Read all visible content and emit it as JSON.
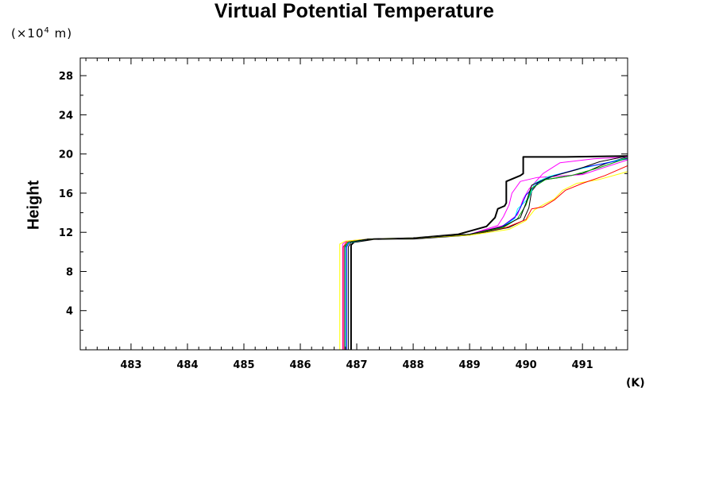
{
  "chart_data": {
    "type": "line",
    "title": "Virtual Potential Temperature",
    "ylabel": "Height",
    "y_unit": "(×10⁴ m)",
    "y_unit_base": "(×10",
    "y_unit_exp": "4",
    "y_unit_tail": " m)",
    "x_unit": "(K)",
    "xlim": [
      482.1,
      491.8
    ],
    "ylim": [
      0,
      29.8
    ],
    "x_ticks": [
      "483",
      "484",
      "485",
      "486",
      "487",
      "488",
      "489",
      "490",
      "491"
    ],
    "y_ticks": [
      "4",
      "8",
      "12",
      "16",
      "20",
      "24",
      "28"
    ],
    "grid": false,
    "series": [
      {
        "color": "#000000",
        "points": [
          [
            486.9,
            0
          ],
          [
            486.9,
            10.7
          ],
          [
            486.95,
            11.0
          ],
          [
            487.3,
            11.3
          ],
          [
            488,
            11.4
          ],
          [
            488.8,
            11.8
          ],
          [
            489.3,
            12.6
          ],
          [
            489.45,
            13.5
          ],
          [
            489.5,
            14.4
          ],
          [
            489.62,
            14.7
          ],
          [
            489.65,
            15.0
          ],
          [
            489.65,
            17.2
          ],
          [
            489.9,
            17.8
          ],
          [
            489.95,
            18.0
          ],
          [
            489.95,
            19.7
          ],
          [
            490.7,
            19.7
          ],
          [
            491.8,
            19.8
          ]
        ],
        "width": 2
      },
      {
        "color": "#000000",
        "points": [
          [
            486.8,
            0
          ],
          [
            486.8,
            10.5
          ],
          [
            486.85,
            11.0
          ],
          [
            487.2,
            11.3
          ],
          [
            488,
            11.3
          ],
          [
            489,
            11.7
          ],
          [
            489.7,
            12.5
          ],
          [
            489.95,
            13.2
          ],
          [
            490.05,
            14.5
          ],
          [
            490.1,
            16.2
          ],
          [
            490.25,
            17.3
          ],
          [
            490.6,
            17.6
          ],
          [
            491,
            18.0
          ],
          [
            491.4,
            19.0
          ],
          [
            491.8,
            19.7
          ]
        ],
        "width": 1
      },
      {
        "color": "#ff00ff",
        "points": [
          [
            486.75,
            0
          ],
          [
            486.75,
            10.8
          ],
          [
            486.82,
            11.1
          ],
          [
            487.2,
            11.3
          ],
          [
            488,
            11.4
          ],
          [
            489,
            11.8
          ],
          [
            489.5,
            12.7
          ],
          [
            489.6,
            13.6
          ],
          [
            489.7,
            14.8
          ],
          [
            489.75,
            16.0
          ],
          [
            489.9,
            17.2
          ],
          [
            490.2,
            17.6
          ],
          [
            491,
            17.9
          ],
          [
            491.8,
            19.4
          ]
        ],
        "width": 1
      },
      {
        "color": "#ff00ff",
        "points": [
          [
            486.78,
            0
          ],
          [
            486.78,
            10.6
          ],
          [
            486.85,
            11.0
          ],
          [
            487.2,
            11.3
          ],
          [
            488,
            11.4
          ],
          [
            489,
            11.8
          ],
          [
            489.6,
            12.7
          ],
          [
            489.85,
            13.8
          ],
          [
            489.95,
            15.4
          ],
          [
            490.05,
            16.4
          ],
          [
            490.3,
            18.0
          ],
          [
            490.6,
            19.1
          ],
          [
            491.2,
            19.5
          ],
          [
            491.8,
            19.7
          ]
        ],
        "width": 1
      },
      {
        "color": "#00ffff",
        "points": [
          [
            486.8,
            0
          ],
          [
            486.8,
            10.4
          ],
          [
            486.85,
            10.9
          ],
          [
            487.2,
            11.3
          ],
          [
            488,
            11.4
          ],
          [
            489,
            11.8
          ],
          [
            489.6,
            12.6
          ],
          [
            489.8,
            13.4
          ],
          [
            489.85,
            14.4
          ],
          [
            490.05,
            15.5
          ],
          [
            490.15,
            17.0
          ],
          [
            490.4,
            17.7
          ],
          [
            490.9,
            18.4
          ],
          [
            491.8,
            19.6
          ]
        ],
        "width": 1
      },
      {
        "color": "#0000ff",
        "points": [
          [
            486.82,
            0
          ],
          [
            486.82,
            10.5
          ],
          [
            486.87,
            11.0
          ],
          [
            487.2,
            11.3
          ],
          [
            488,
            11.4
          ],
          [
            489,
            11.8
          ],
          [
            489.55,
            12.5
          ],
          [
            489.8,
            13.5
          ],
          [
            489.9,
            14.5
          ],
          [
            490,
            15.8
          ],
          [
            490.2,
            17.0
          ],
          [
            490.5,
            17.8
          ],
          [
            491,
            18.6
          ],
          [
            491.8,
            19.5
          ]
        ],
        "width": 1
      },
      {
        "color": "#ffff00",
        "points": [
          [
            486.7,
            0
          ],
          [
            486.7,
            10.8
          ],
          [
            486.8,
            11.1
          ],
          [
            487.2,
            11.3
          ],
          [
            488,
            11.4
          ],
          [
            489,
            11.7
          ],
          [
            489.7,
            12.3
          ],
          [
            490.0,
            13.2
          ],
          [
            490.15,
            14.3
          ],
          [
            490.3,
            14.8
          ],
          [
            490.5,
            15.4
          ],
          [
            490.65,
            16.3
          ],
          [
            490.9,
            17.0
          ],
          [
            491.3,
            17.4
          ],
          [
            491.8,
            18.2
          ]
        ],
        "width": 1
      },
      {
        "color": "#ff0000",
        "points": [
          [
            486.76,
            0
          ],
          [
            486.76,
            10.5
          ],
          [
            486.82,
            11.0
          ],
          [
            487.2,
            11.3
          ],
          [
            488,
            11.4
          ],
          [
            489,
            11.8
          ],
          [
            489.65,
            12.5
          ],
          [
            490.0,
            13.3
          ],
          [
            490.1,
            14.4
          ],
          [
            490.3,
            14.6
          ],
          [
            490.5,
            15.3
          ],
          [
            490.7,
            16.3
          ],
          [
            491,
            17.0
          ],
          [
            491.4,
            17.8
          ],
          [
            491.8,
            18.8
          ]
        ],
        "width": 1
      },
      {
        "color": "#00aa00",
        "points": [
          [
            486.79,
            0
          ],
          [
            486.79,
            10.6
          ],
          [
            486.85,
            11.0
          ],
          [
            487.2,
            11.3
          ],
          [
            488,
            11.4
          ],
          [
            489,
            11.8
          ],
          [
            489.6,
            12.5
          ],
          [
            489.85,
            13.4
          ],
          [
            490.0,
            14.8
          ],
          [
            490.1,
            16.5
          ],
          [
            490.35,
            17.4
          ],
          [
            490.8,
            17.8
          ],
          [
            491.3,
            18.6
          ],
          [
            491.8,
            19.6
          ]
        ],
        "width": 1
      },
      {
        "color": "#000000",
        "points": [
          [
            486.85,
            0
          ],
          [
            486.85,
            10.5
          ],
          [
            486.9,
            11.0
          ],
          [
            487.2,
            11.3
          ],
          [
            488,
            11.4
          ],
          [
            489,
            11.8
          ],
          [
            489.6,
            12.6
          ],
          [
            489.9,
            13.5
          ],
          [
            490.0,
            15.0
          ],
          [
            490.1,
            16.8
          ],
          [
            490.4,
            17.6
          ],
          [
            490.9,
            18.4
          ],
          [
            491.3,
            19.2
          ],
          [
            491.8,
            19.8
          ]
        ],
        "width": 1
      }
    ]
  }
}
